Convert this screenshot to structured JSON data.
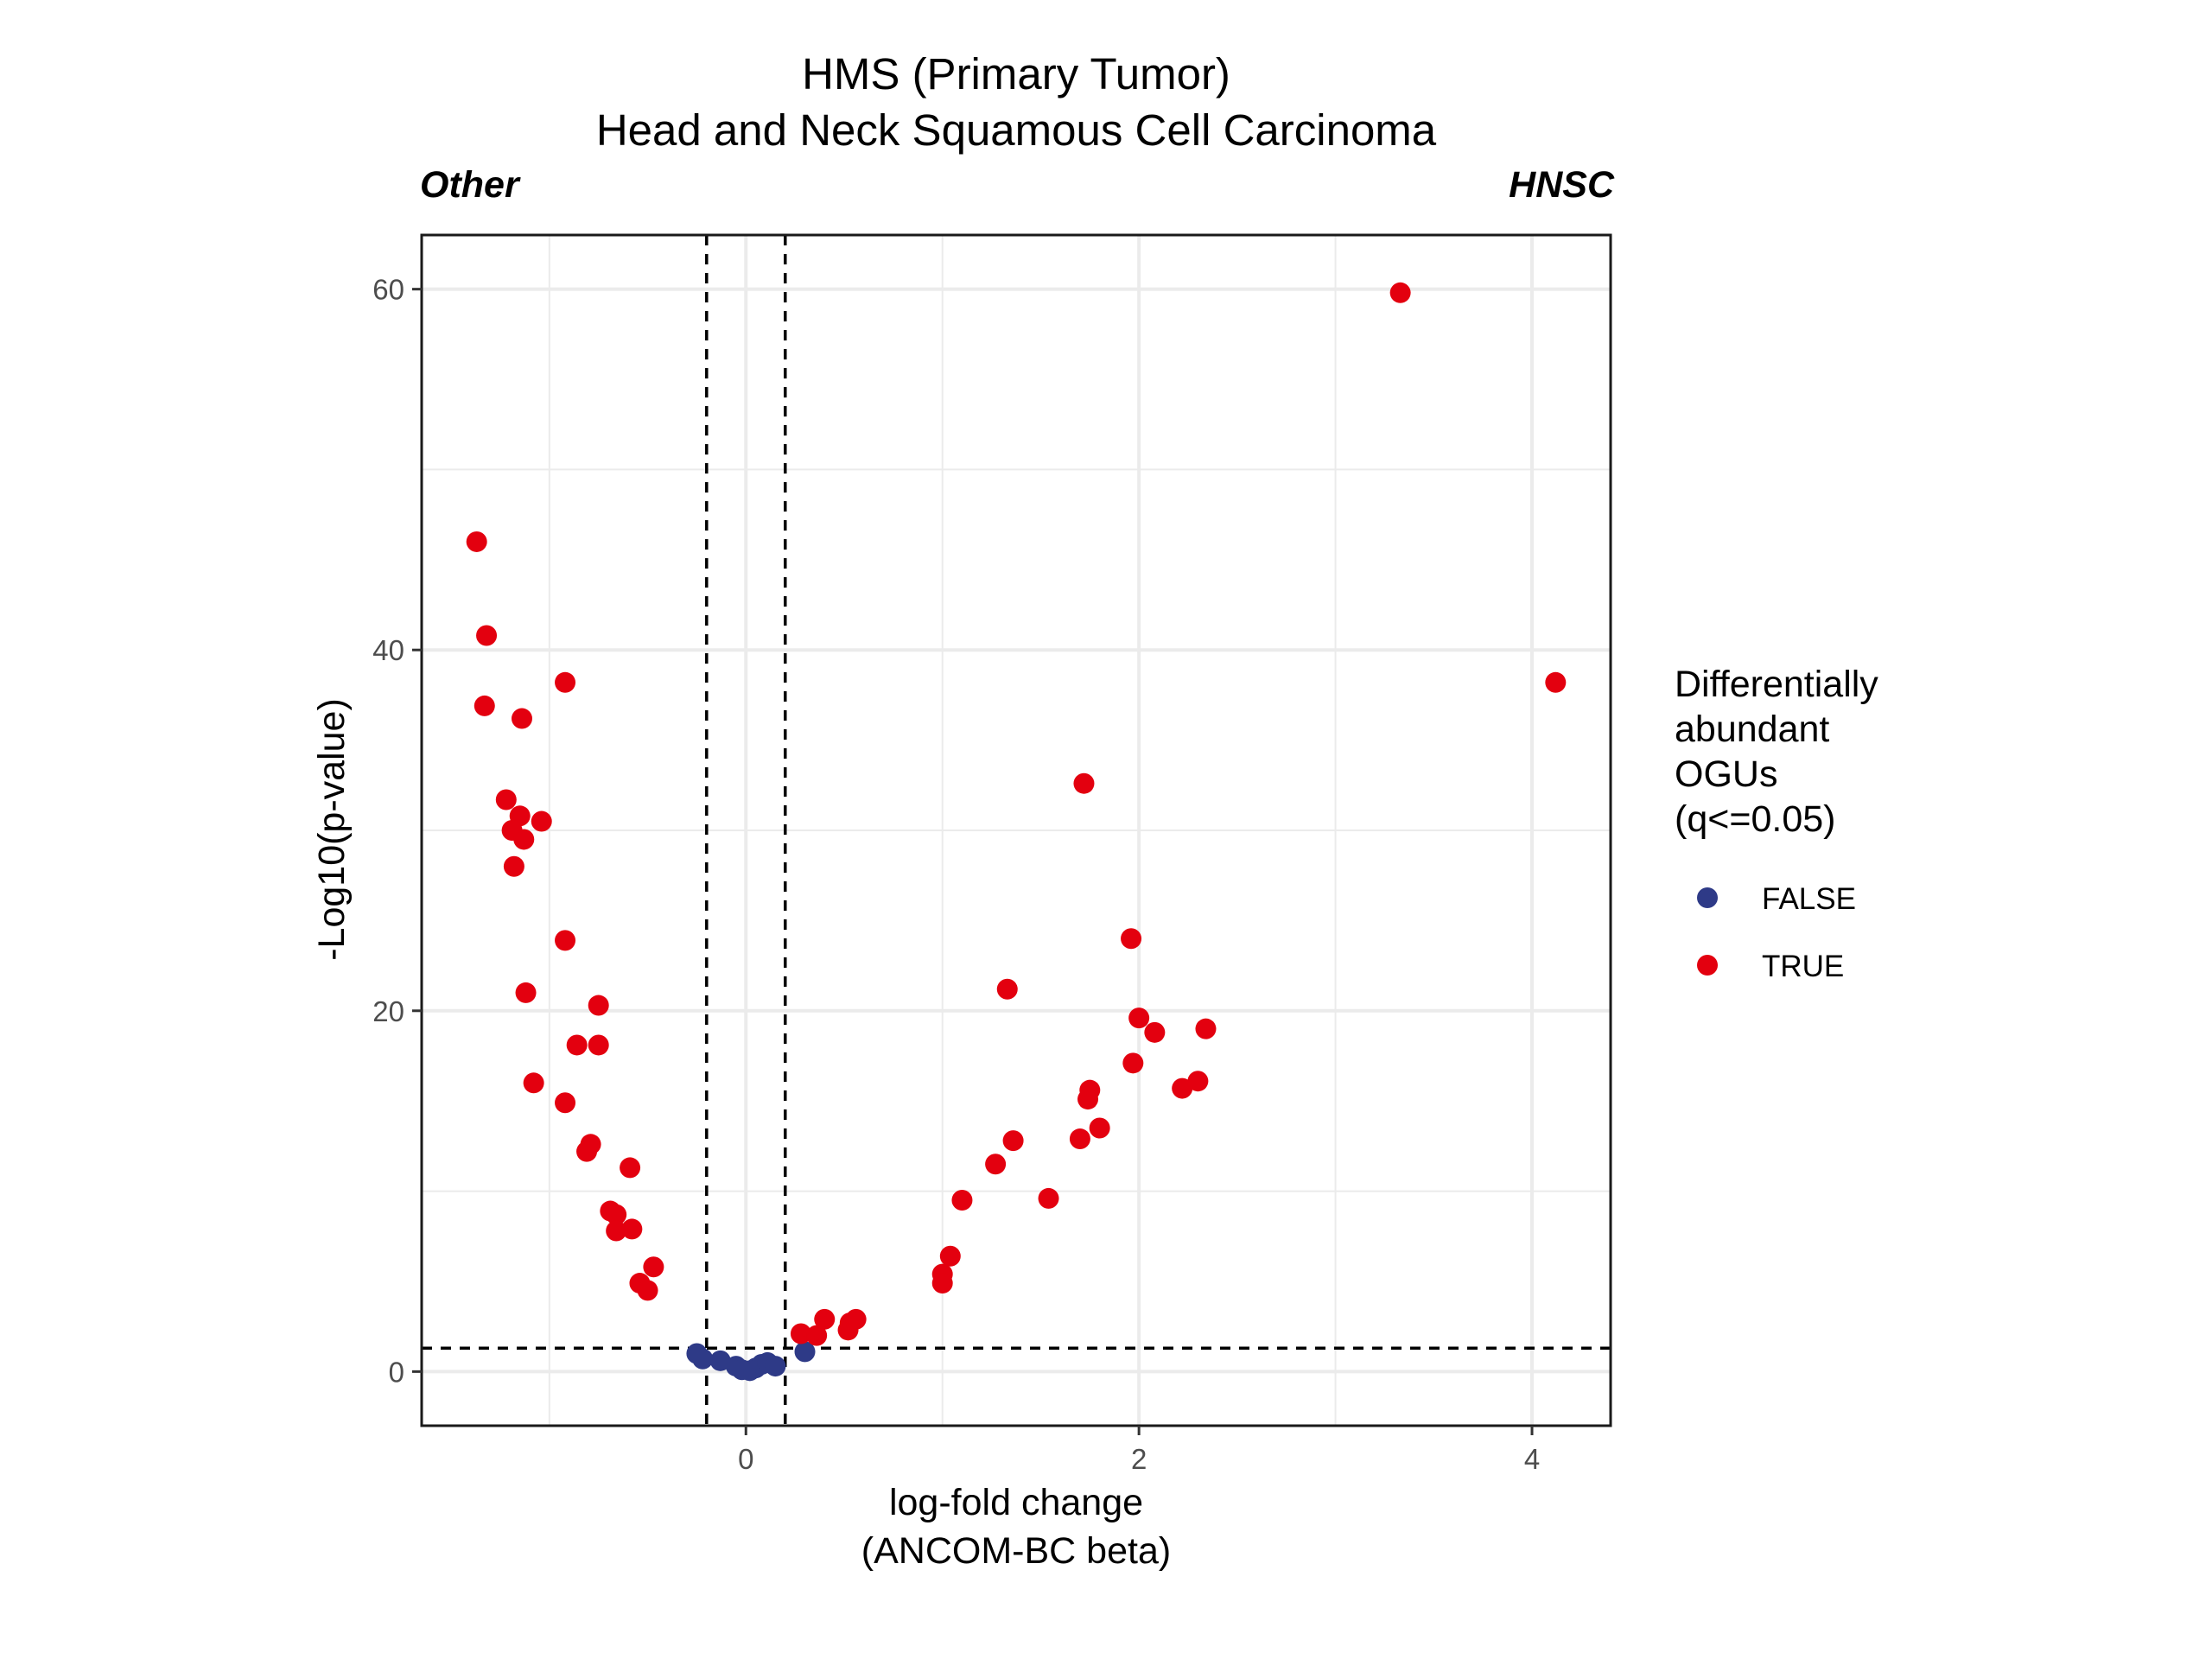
{
  "chart_data": {
    "type": "scatter",
    "title": "HMS (Primary Tumor)",
    "subtitle": "Head and Neck Squamous Cell Carcinoma",
    "left_label": "Other",
    "right_label": "HNSC",
    "xlabel_line1": "log-fold change",
    "xlabel_line2": "(ANCOM-BC beta)",
    "ylabel": "-Log10(p-value)",
    "xlim": [
      -1.65,
      4.4
    ],
    "ylim": [
      -3,
      63
    ],
    "x_ticks": [
      0,
      2,
      4
    ],
    "y_ticks": [
      0,
      20,
      40,
      60
    ],
    "grid": true,
    "thresholds": {
      "x": [
        -0.2,
        0.2
      ],
      "y": 1.3
    },
    "legend": {
      "title_lines": [
        "Differentially",
        "abundant",
        "OGUs",
        "(q<=0.05)"
      ],
      "position": "right",
      "items": [
        {
          "label": "FALSE",
          "color": "#2E3A87"
        },
        {
          "label": "TRUE",
          "color": "#E3000F"
        }
      ]
    },
    "series": [
      {
        "name": "FALSE",
        "color": "#2E3A87",
        "points": [
          [
            -0.25,
            1.0
          ],
          [
            -0.22,
            0.7
          ],
          [
            -0.13,
            0.6
          ],
          [
            -0.05,
            0.3
          ],
          [
            -0.02,
            0.1
          ],
          [
            0.02,
            0.05
          ],
          [
            0.05,
            0.2
          ],
          [
            0.08,
            0.4
          ],
          [
            0.11,
            0.5
          ],
          [
            0.15,
            0.3
          ],
          [
            0.3,
            1.1
          ]
        ]
      },
      {
        "name": "TRUE",
        "color": "#E3000F",
        "points": [
          [
            3.33,
            59.8
          ],
          [
            4.12,
            38.2
          ],
          [
            -1.37,
            46.0
          ],
          [
            -1.32,
            40.8
          ],
          [
            -1.33,
            36.9
          ],
          [
            -0.92,
            38.2
          ],
          [
            -1.14,
            36.2
          ],
          [
            -1.22,
            31.7
          ],
          [
            -1.15,
            30.8
          ],
          [
            -1.04,
            30.5
          ],
          [
            -1.19,
            30.0
          ],
          [
            -1.13,
            29.5
          ],
          [
            -1.18,
            28.0
          ],
          [
            -0.92,
            23.9
          ],
          [
            -1.12,
            21.0
          ],
          [
            -0.75,
            20.3
          ],
          [
            -0.86,
            18.1
          ],
          [
            -0.75,
            18.1
          ],
          [
            -1.08,
            16.0
          ],
          [
            -0.92,
            14.9
          ],
          [
            -0.79,
            12.6
          ],
          [
            -0.81,
            12.2
          ],
          [
            -0.59,
            11.3
          ],
          [
            -0.69,
            8.9
          ],
          [
            -0.66,
            8.7
          ],
          [
            -0.66,
            7.8
          ],
          [
            -0.58,
            7.9
          ],
          [
            -0.47,
            5.8
          ],
          [
            -0.54,
            4.9
          ],
          [
            -0.5,
            4.5
          ],
          [
            1.72,
            32.6
          ],
          [
            1.96,
            24.0
          ],
          [
            1.33,
            21.2
          ],
          [
            2.0,
            19.6
          ],
          [
            2.34,
            19.0
          ],
          [
            2.08,
            18.8
          ],
          [
            1.97,
            17.1
          ],
          [
            1.75,
            15.6
          ],
          [
            1.74,
            15.1
          ],
          [
            2.3,
            16.1
          ],
          [
            2.22,
            15.7
          ],
          [
            1.8,
            13.5
          ],
          [
            1.7,
            12.9
          ],
          [
            1.36,
            12.8
          ],
          [
            1.27,
            11.5
          ],
          [
            1.1,
            9.5
          ],
          [
            1.54,
            9.6
          ],
          [
            1.04,
            6.4
          ],
          [
            1.0,
            5.4
          ],
          [
            1.0,
            4.9
          ],
          [
            0.28,
            2.1
          ],
          [
            0.36,
            2.0
          ],
          [
            0.4,
            2.9
          ],
          [
            0.52,
            2.3
          ],
          [
            0.53,
            2.7
          ],
          [
            0.56,
            2.9
          ]
        ]
      }
    ]
  }
}
